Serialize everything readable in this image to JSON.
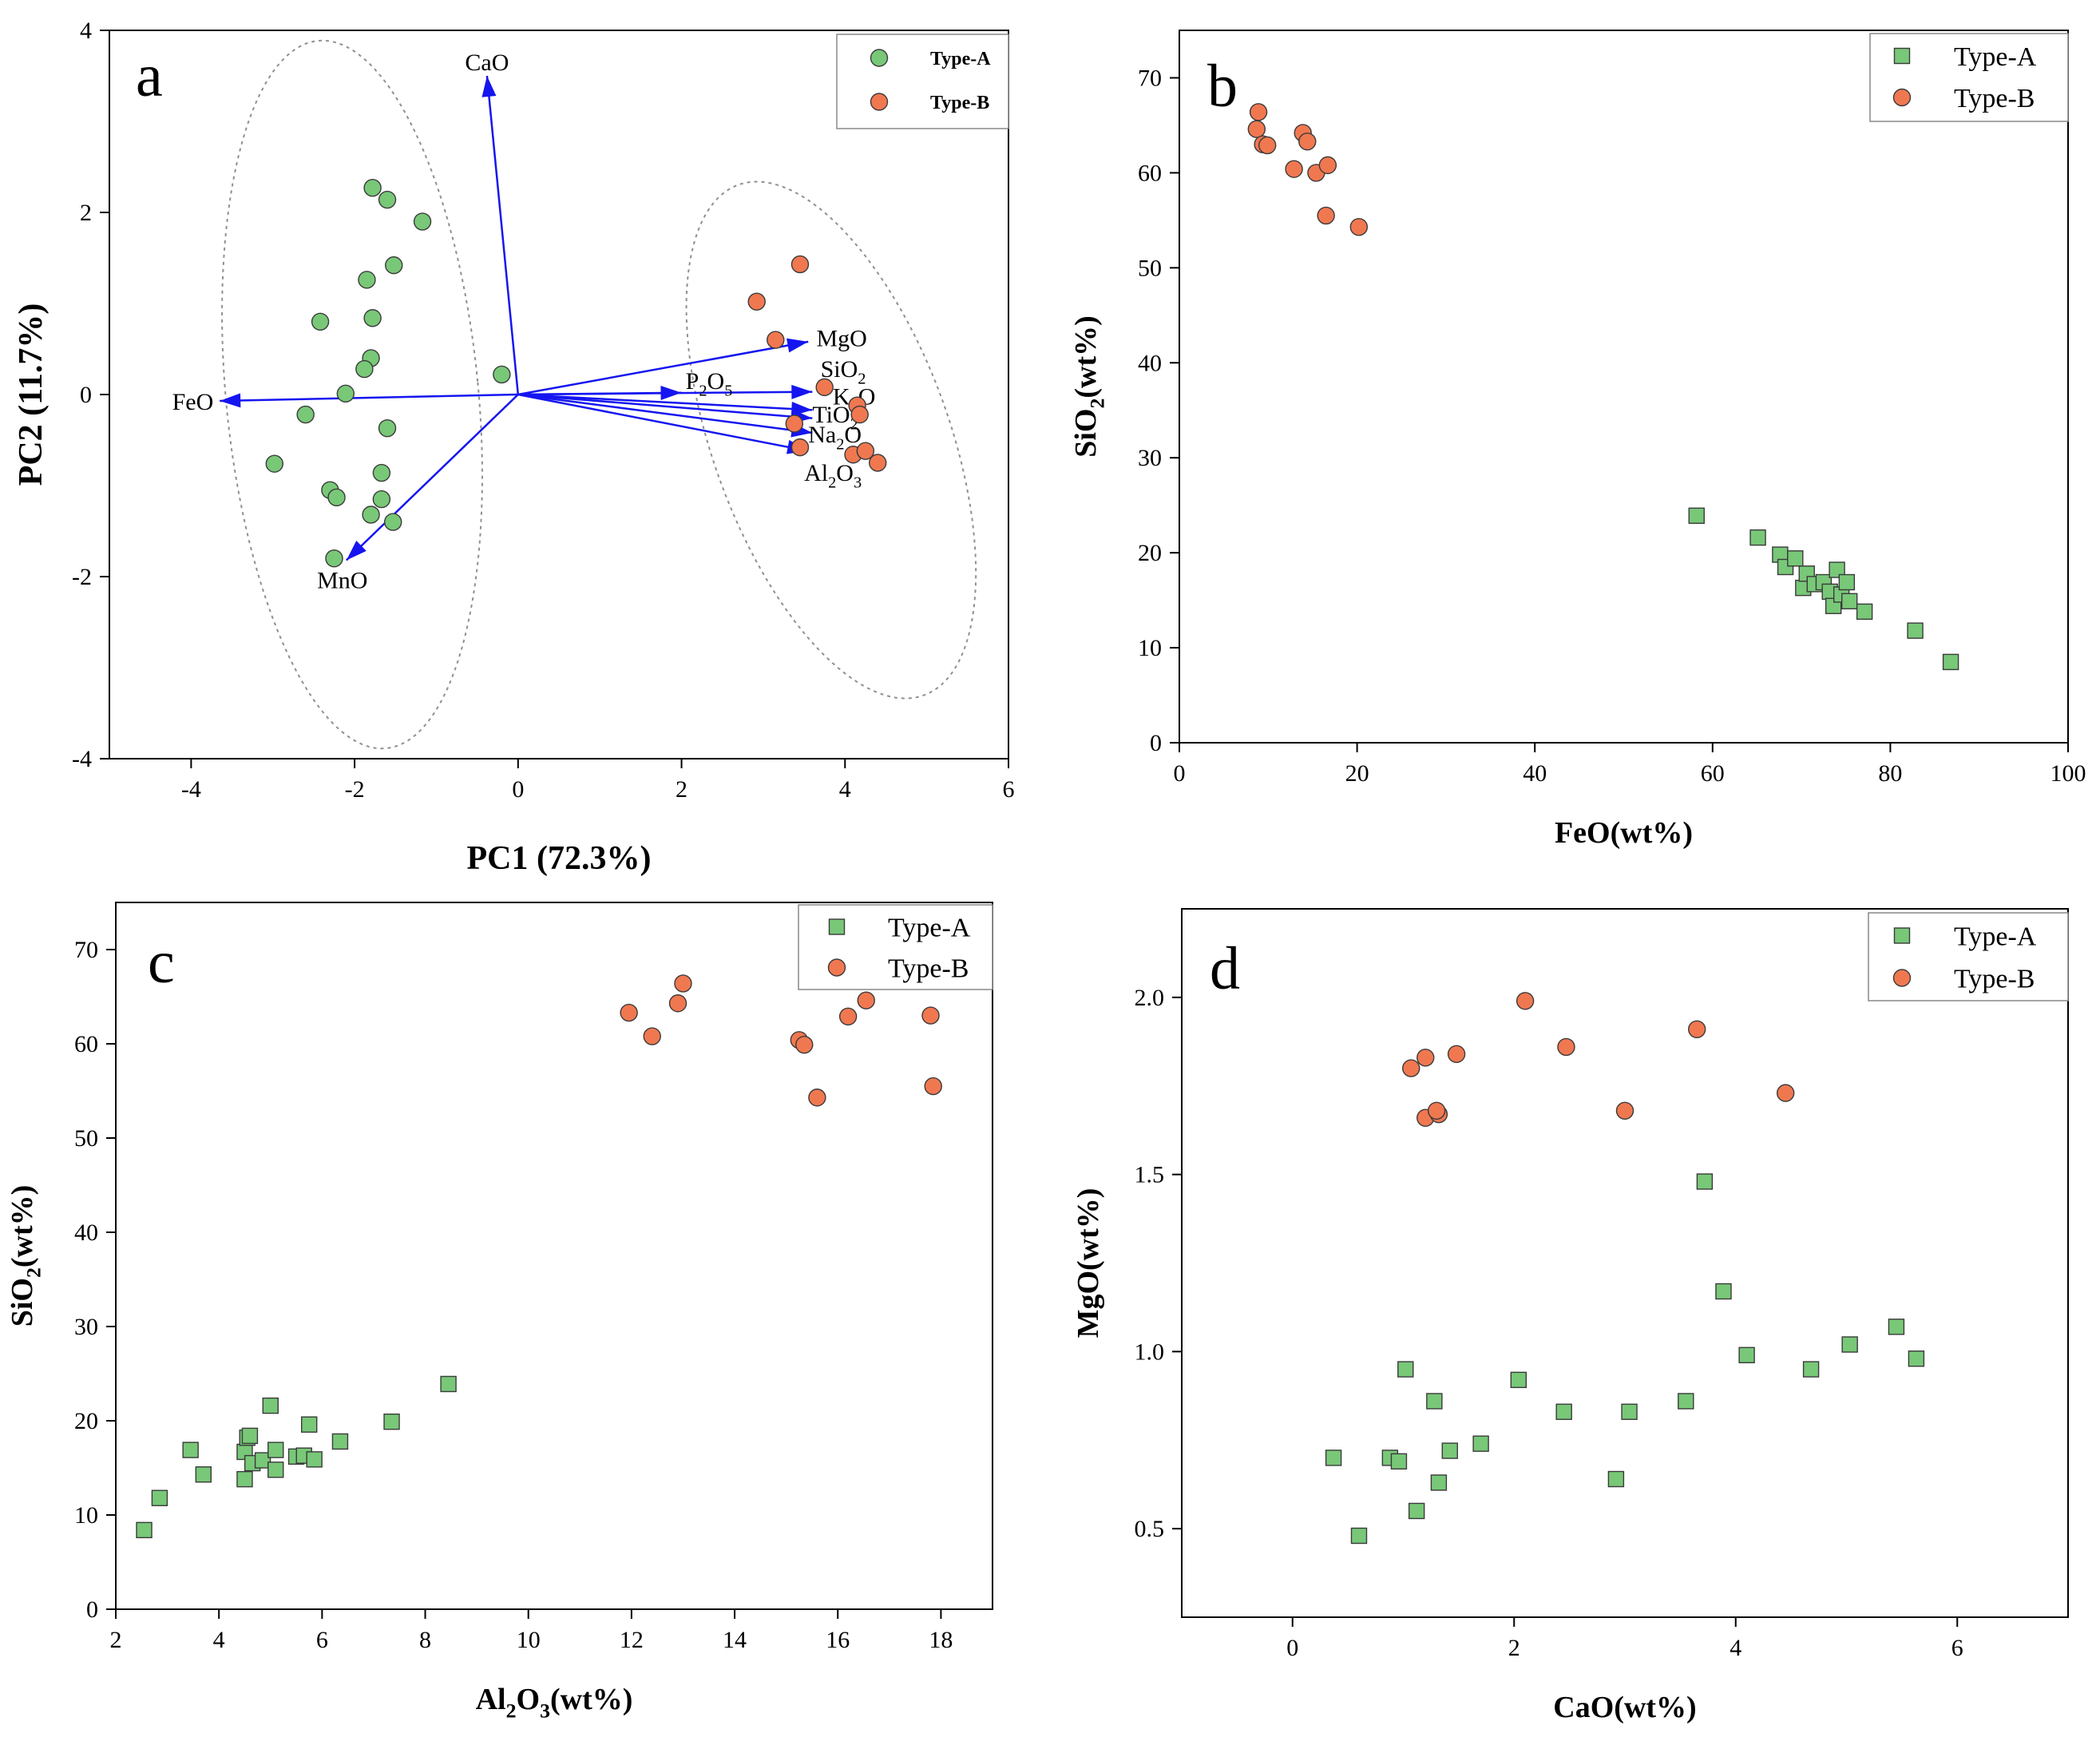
{
  "colors": {
    "type_a_fill": "#78c878",
    "type_b_fill": "#f07850",
    "marker_stroke": "#3a3a3a",
    "vector": "#1515f0",
    "ellipse": "#909090",
    "axis": "#000000"
  },
  "chart_data": [
    {
      "id": "a",
      "type": "scatter",
      "panel_label": "a",
      "xlabel": "PC1 (72.3%)",
      "ylabel": "PC2 (11.7%)",
      "xlim": [
        -5,
        6
      ],
      "ylim": [
        -4,
        4
      ],
      "xticks": [
        -4,
        -2,
        0,
        2,
        4,
        6
      ],
      "yticks": [
        -4,
        -2,
        0,
        2,
        4
      ],
      "grid": false,
      "legend_position": "top-right",
      "marker": "circle",
      "series": [
        {
          "name": "Type-A",
          "color_key": "type_a_fill",
          "x": [
            -1.78,
            -1.6,
            -1.17,
            -1.52,
            -1.85,
            -1.78,
            -2.42,
            -1.8,
            -1.88,
            -2.11,
            -0.2,
            -2.6,
            -1.6,
            -2.98,
            -1.67,
            -2.3,
            -2.22,
            -1.67,
            -1.8,
            -1.53,
            -2.25
          ],
          "y": [
            2.27,
            2.14,
            1.9,
            1.42,
            1.26,
            0.84,
            0.8,
            0.4,
            0.28,
            0.01,
            0.22,
            -0.22,
            -0.37,
            -0.76,
            -0.86,
            -1.05,
            -1.13,
            -1.15,
            -1.32,
            -1.4,
            -1.8
          ]
        },
        {
          "name": "Type-B",
          "color_key": "type_b_fill",
          "x": [
            3.45,
            2.92,
            3.15,
            3.75,
            4.15,
            4.18,
            3.38,
            3.45,
            4.1,
            4.25,
            4.4
          ],
          "y": [
            1.43,
            1.02,
            0.6,
            0.08,
            -0.12,
            -0.22,
            -0.32,
            -0.58,
            -0.66,
            -0.62,
            -0.75
          ]
        }
      ],
      "loadings": [
        {
          "name": "CaO",
          "x": -0.38,
          "y": 3.5
        },
        {
          "name": "FeO",
          "x": -3.65,
          "y": -0.07
        },
        {
          "name": "MnO",
          "x": -2.1,
          "y": -1.82
        },
        {
          "name": "MgO",
          "x": 3.55,
          "y": 0.58
        },
        {
          "name": "P2O5",
          "x": 2.0,
          "y": 0.02
        },
        {
          "name": "SiO2",
          "x": 3.6,
          "y": 0.03
        },
        {
          "name": "K2O",
          "x": 3.6,
          "y": -0.17
        },
        {
          "name": "TiO2",
          "x": 3.6,
          "y": -0.26
        },
        {
          "name": "Na2O",
          "x": 3.6,
          "y": -0.42
        },
        {
          "name": "Al2O3",
          "x": 3.55,
          "y": -0.62
        }
      ],
      "loading_labels": [
        {
          "base": "CaO",
          "sub": "",
          "tail": ""
        },
        {
          "base": "FeO",
          "sub": "",
          "tail": ""
        },
        {
          "base": "MnO",
          "sub": "",
          "tail": ""
        },
        {
          "base": "MgO",
          "sub": "",
          "tail": ""
        },
        {
          "base": "P",
          "sub": "2",
          "tail": "O",
          "sub2": "5"
        },
        {
          "base": "SiO",
          "sub": "2",
          "tail": ""
        },
        {
          "base": "K",
          "sub": "2",
          "tail": "O"
        },
        {
          "base": "TiO",
          "sub": "2",
          "tail": ""
        },
        {
          "base": "Na",
          "sub": "2",
          "tail": "O"
        },
        {
          "base": "Al",
          "sub": "2",
          "tail": "O",
          "sub2": "3"
        }
      ],
      "ellipses_shown": true
    },
    {
      "id": "b",
      "type": "scatter",
      "panel_label": "b",
      "xlabel": "FeO(wt%)",
      "ylabel": "SiO2(wt%)",
      "xlim": [
        0,
        100
      ],
      "ylim": [
        0,
        75
      ],
      "xticks": [
        0,
        20,
        40,
        60,
        80,
        100
      ],
      "yticks": [
        0,
        10,
        20,
        30,
        40,
        50,
        60,
        70
      ],
      "grid": false,
      "legend_position": "top-right",
      "series": [
        {
          "name": "Type-A",
          "marker": "square",
          "color_key": "type_a_fill",
          "x": [
            58.2,
            65.1,
            67.6,
            68.2,
            69.3,
            70.2,
            70.6,
            71.5,
            72.5,
            73.2,
            73.6,
            74.0,
            74.5,
            75.1,
            75.4,
            77.1,
            82.8,
            86.8
          ],
          "y": [
            23.9,
            21.6,
            19.8,
            18.5,
            19.4,
            16.3,
            17.8,
            16.7,
            16.9,
            15.9,
            14.4,
            18.2,
            15.6,
            16.9,
            14.9,
            13.8,
            11.8,
            8.5
          ]
        },
        {
          "name": "Type-B",
          "marker": "circle",
          "color_key": "type_b_fill",
          "x": [
            8.9,
            8.7,
            9.4,
            9.9,
            13.9,
            14.4,
            12.9,
            15.4,
            16.7,
            16.5,
            20.2
          ],
          "y": [
            66.4,
            64.6,
            63.0,
            62.9,
            64.2,
            63.3,
            60.4,
            60.0,
            60.8,
            55.5,
            54.3
          ]
        }
      ]
    },
    {
      "id": "c",
      "type": "scatter",
      "panel_label": "c",
      "xlabel": "Al2O3(wt%)",
      "ylabel": "SiO2(wt%)",
      "xlim": [
        2,
        19
      ],
      "ylim": [
        0,
        75
      ],
      "xticks": [
        2,
        4,
        6,
        8,
        10,
        12,
        14,
        16,
        18
      ],
      "yticks": [
        0,
        10,
        20,
        30,
        40,
        50,
        60,
        70
      ],
      "grid": false,
      "legend_position": "top-right",
      "series": [
        {
          "name": "Type-A",
          "marker": "square",
          "color_key": "type_a_fill",
          "x": [
            2.55,
            2.85,
            3.45,
            3.7,
            4.5,
            4.55,
            4.6,
            4.5,
            4.65,
            4.85,
            5.0,
            5.1,
            5.1,
            5.5,
            5.65,
            5.75,
            5.85,
            6.35,
            7.35,
            8.45
          ],
          "y": [
            8.4,
            11.8,
            16.9,
            14.3,
            16.7,
            18.2,
            18.4,
            13.8,
            15.5,
            15.8,
            21.6,
            14.8,
            16.9,
            16.2,
            16.3,
            19.6,
            15.9,
            17.8,
            19.9,
            23.9
          ]
        },
        {
          "name": "Type-B",
          "marker": "circle",
          "color_key": "type_b_fill",
          "x": [
            11.95,
            12.4,
            12.9,
            13.0,
            15.25,
            15.35,
            15.6,
            16.2,
            16.55,
            17.8,
            17.85
          ],
          "y": [
            63.3,
            60.8,
            64.3,
            66.4,
            60.4,
            59.9,
            54.3,
            62.9,
            64.6,
            63.0,
            55.5
          ]
        }
      ]
    },
    {
      "id": "d",
      "type": "scatter",
      "panel_label": "d",
      "xlabel": "CaO(wt%)",
      "ylabel": "MgO(wt%)",
      "xlim": [
        -1,
        7
      ],
      "ylim": [
        0.25,
        2.25
      ],
      "xticks": [
        0,
        2,
        4,
        6
      ],
      "yticks": [
        0.5,
        1.0,
        1.5,
        2.0
      ],
      "ytick_labels": [
        "0.5",
        "1.0",
        "1.5",
        "2.0"
      ],
      "grid": false,
      "legend_position": "top-right",
      "series": [
        {
          "name": "Type-A",
          "marker": "square",
          "color_key": "type_a_fill",
          "x": [
            0.37,
            0.6,
            0.88,
            0.96,
            1.02,
            1.12,
            1.28,
            1.32,
            1.42,
            1.7,
            2.04,
            2.45,
            2.92,
            3.04,
            3.55,
            3.72,
            3.89,
            4.1,
            4.68,
            5.03,
            5.45,
            5.63
          ],
          "y": [
            0.7,
            0.48,
            0.7,
            0.69,
            0.95,
            0.55,
            0.86,
            0.63,
            0.72,
            0.74,
            0.92,
            0.83,
            0.64,
            0.83,
            0.86,
            1.48,
            1.17,
            0.99,
            0.95,
            1.02,
            1.07,
            0.98
          ]
        },
        {
          "name": "Type-B",
          "marker": "circle",
          "color_key": "type_b_fill",
          "x": [
            1.07,
            1.2,
            1.2,
            1.32,
            1.3,
            1.48,
            2.1,
            2.47,
            3.0,
            3.65,
            4.45
          ],
          "y": [
            1.8,
            1.83,
            1.66,
            1.67,
            1.68,
            1.84,
            1.99,
            1.86,
            1.68,
            1.91,
            1.73
          ]
        }
      ]
    }
  ],
  "legend": {
    "a": {
      "entries": [
        "Type-A",
        "Type-B"
      ],
      "bold": true
    },
    "b": {
      "entries": [
        "Type-A",
        "Type-B"
      ],
      "bold": false
    },
    "c": {
      "entries": [
        "Type-A",
        "Type-B"
      ],
      "bold": false
    },
    "d": {
      "entries": [
        "Type-A",
        "Type-B"
      ],
      "bold": false
    }
  },
  "axis_titles": {
    "a": {
      "x": "PC1 (72.3%)",
      "y": "PC2 (11.7%)"
    },
    "b": {
      "x": "FeO(wt%)",
      "y_base": "SiO",
      "y_sub": "2",
      "y_tail": "(wt%)"
    },
    "c": {
      "x_base": "Al",
      "x_sub": "2",
      "x_mid": "O",
      "x_sub2": "3",
      "x_tail": "(wt%)",
      "y_base": "SiO",
      "y_sub": "2",
      "y_tail": "(wt%)"
    },
    "d": {
      "x": "CaO(wt%)",
      "y": "MgO(wt%)"
    }
  }
}
